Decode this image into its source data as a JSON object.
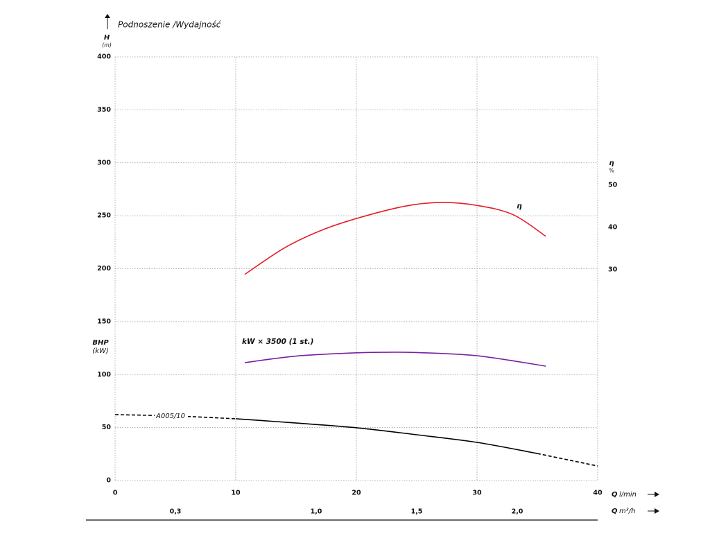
{
  "chart_data": {
    "type": "line",
    "title": "Podnoszenie /Wydajność",
    "y_label": "H",
    "y_unit": "(m)",
    "y2_label": "η",
    "y2_unit": "%",
    "bhp_label": "BHP",
    "bhp_unit": "(kW)",
    "x_label": "Q",
    "x_unit": "l/min",
    "x2_label": "Q",
    "x2_unit": "m³/h",
    "xlim": [
      0,
      40
    ],
    "xticks": [
      0,
      10,
      20,
      30,
      40
    ],
    "ylim": [
      0,
      400
    ],
    "yticks": [
      0,
      50,
      100,
      150,
      200,
      250,
      300,
      350,
      400
    ],
    "y2lim": [
      -19.8,
      80.3
    ],
    "y2ticks": [
      30,
      40,
      50
    ],
    "x2lim": [
      0,
      2.4
    ],
    "x2ticks": [
      {
        "value": 0.3,
        "label": "0,3"
      },
      {
        "value": 1.0,
        "label": "1,0"
      },
      {
        "value": 1.5,
        "label": "1,5"
      },
      {
        "value": 2.0,
        "label": "2,0"
      }
    ],
    "grid": true,
    "series": [
      {
        "name": "A005/10",
        "color": "#000000",
        "x": [
          0,
          5,
          10,
          15,
          20,
          25,
          30,
          35,
          40
        ],
        "values": [
          62.2,
          60.9,
          58.3,
          54.3,
          49.8,
          43.2,
          36.0,
          25.5,
          13.7
        ],
        "solid_range": [
          10,
          35
        ]
      },
      {
        "name": "kW × 3500 (1 st.)",
        "color": "#7b1fa2",
        "x": [
          10.75,
          15,
          20,
          22.5,
          25,
          30,
          35.7
        ],
        "values": [
          111.3,
          117.5,
          120.6,
          121.1,
          120.8,
          117.8,
          108
        ]
      },
      {
        "name": "η",
        "color": "#e31e24",
        "axis": "y2",
        "x": [
          10.75,
          14,
          17,
          20,
          24,
          27,
          30,
          33,
          35.7
        ],
        "values": [
          28.9,
          35.1,
          39.2,
          42.1,
          45.0,
          45.9,
          45.2,
          43.0,
          37.9
        ]
      }
    ]
  }
}
